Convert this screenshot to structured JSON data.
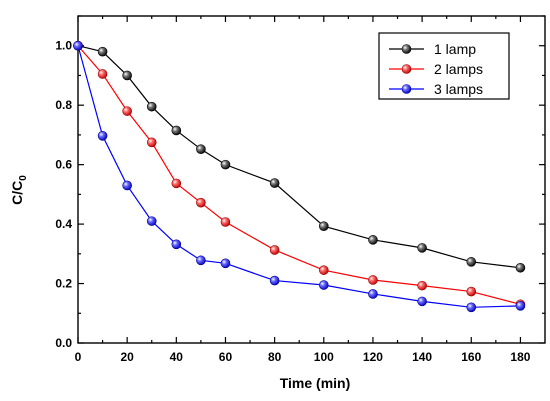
{
  "chart_data": {
    "type": "line",
    "title": "",
    "xlabel": "Time (min)",
    "ylabel_main": "C/C",
    "ylabel_sub": "0",
    "xlim": [
      0,
      190
    ],
    "ylim": [
      0,
      1.1
    ],
    "xticks": [
      0,
      20,
      40,
      60,
      80,
      100,
      120,
      140,
      160,
      180
    ],
    "yticks": [
      0.0,
      0.2,
      0.4,
      0.6,
      0.8,
      1.0
    ],
    "xtick_labels": [
      "0",
      "20",
      "40",
      "60",
      "80",
      "100",
      "120",
      "140",
      "160",
      "180"
    ],
    "ytick_labels": [
      "0.0",
      "0.2",
      "0.4",
      "0.6",
      "0.8",
      "1.0"
    ],
    "grid": false,
    "legend_position": "top-right",
    "series": [
      {
        "name": "1 lamp",
        "color": "#000000",
        "x": [
          0,
          10,
          20,
          30,
          40,
          50,
          60,
          80,
          100,
          120,
          140,
          160,
          180
        ],
        "y": [
          1.0,
          0.98,
          0.9,
          0.795,
          0.715,
          0.652,
          0.6,
          0.538,
          0.393,
          0.347,
          0.32,
          0.273,
          0.253
        ]
      },
      {
        "name": "2 lamps",
        "color": "#ff0000",
        "x": [
          0,
          10,
          20,
          30,
          40,
          50,
          60,
          80,
          100,
          120,
          140,
          160,
          180
        ],
        "y": [
          1.0,
          0.905,
          0.78,
          0.675,
          0.537,
          0.472,
          0.407,
          0.313,
          0.245,
          0.212,
          0.193,
          0.173,
          0.13
        ]
      },
      {
        "name": "3 lamps",
        "color": "#0000ff",
        "x": [
          0,
          10,
          20,
          30,
          40,
          50,
          60,
          80,
          100,
          120,
          140,
          160,
          180
        ],
        "y": [
          1.0,
          0.697,
          0.53,
          0.41,
          0.332,
          0.278,
          0.268,
          0.21,
          0.195,
          0.165,
          0.14,
          0.12,
          0.125
        ]
      }
    ]
  }
}
